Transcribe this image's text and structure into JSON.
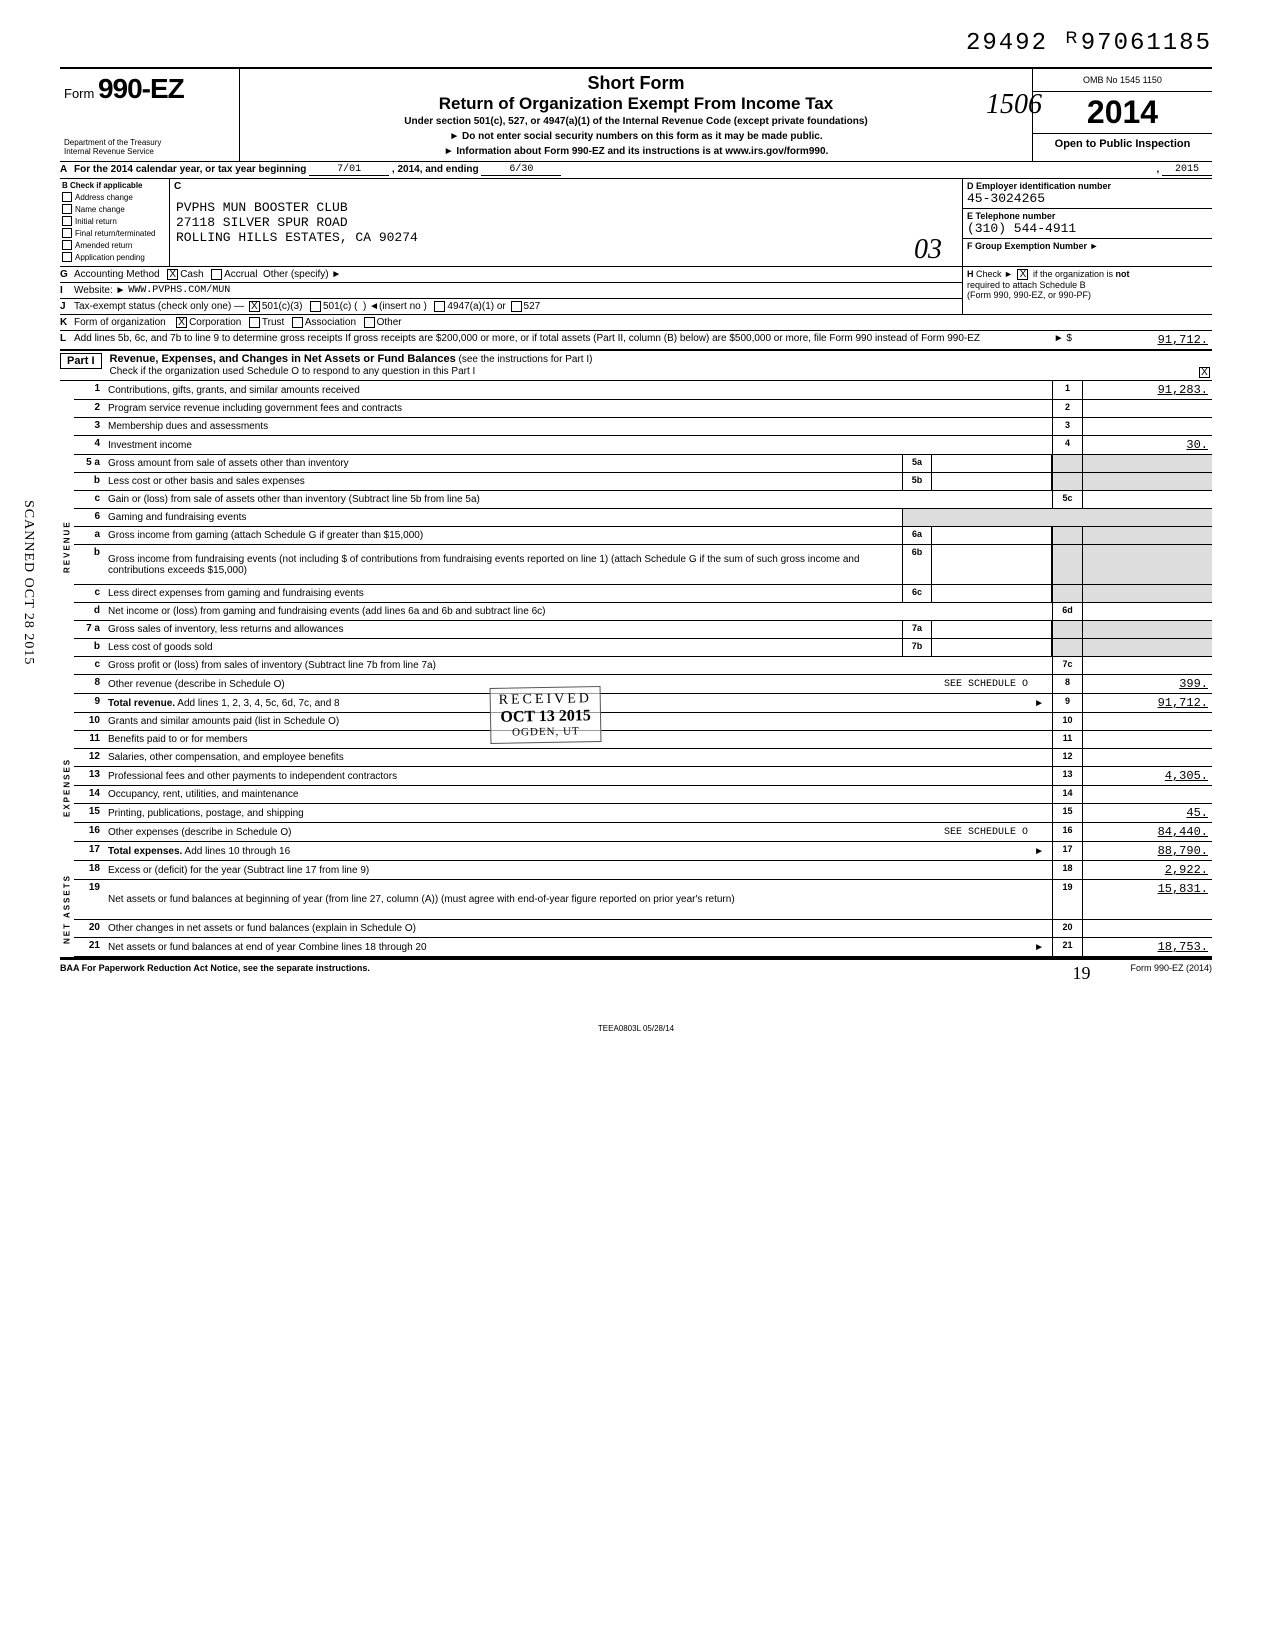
{
  "stamp_number": "29492 ᴿ97061185",
  "form": {
    "prefix": "Form",
    "number": "990-EZ",
    "dept1": "Department of the Treasury",
    "dept2": "Internal Revenue Service"
  },
  "header": {
    "title1": "Short Form",
    "title2": "Return of Organization Exempt From Income Tax",
    "sub": "Under section 501(c), 527, or 4947(a)(1) of the Internal Revenue Code (except private foundations)",
    "note": "► Do not enter social security numbers on this form as it may be made public.",
    "info": "► Information about Form 990-EZ and its instructions is at www.irs.gov/form990.",
    "scribble": "1506"
  },
  "right": {
    "omb": "OMB No 1545 1150",
    "year": "2014",
    "open": "Open to Public Inspection"
  },
  "rowA": {
    "text_pre": "For the 2014 calendar year, or tax year beginning",
    "begin": "7/01",
    "mid": ", 2014, and ending",
    "end": "6/30",
    "year": "2015"
  },
  "colB": {
    "header": "Check if applicable",
    "items": [
      "Address change",
      "Name change",
      "Initial return",
      "Final return/terminated",
      "Amended return",
      "Application pending"
    ]
  },
  "colC": {
    "label": "C",
    "name": "PVPHS MUN BOOSTER CLUB",
    "addr1": "27118 SILVER SPUR ROAD",
    "addr2": "ROLLING HILLS ESTATES, CA 90274",
    "scribble": "03"
  },
  "colDE": {
    "d_label": "D  Employer identification number",
    "d_val": "45-3024265",
    "e_label": "E  Telephone number",
    "e_val": "(310) 544-4911",
    "f_label": "F  Group Exemption Number  ►"
  },
  "rowG": {
    "label": "G",
    "text": "Accounting Method",
    "cash": "Cash",
    "accrual": "Accrual",
    "other": "Other (specify) ►"
  },
  "rowH": {
    "text1": "Check ►",
    "text2": "if the organization is",
    "not": "not",
    "text3": "required to attach Schedule B",
    "text4": "(Form 990, 990-EZ, or 990-PF)"
  },
  "rowI": {
    "label": "I",
    "text": "Website: ►",
    "val": "WWW.PVPHS.COM/MUN"
  },
  "rowJ": {
    "label": "J",
    "text": "Tax-exempt status (check only one) —",
    "o1": "501(c)(3)",
    "o2": "501(c) (",
    "o2b": ")  ◄(insert no )",
    "o3": "4947(a)(1) or",
    "o4": "527"
  },
  "rowK": {
    "label": "K",
    "text": "Form of organization",
    "opts": [
      "Corporation",
      "Trust",
      "Association",
      "Other"
    ]
  },
  "rowL": {
    "label": "L",
    "text": "Add lines 5b, 6c, and 7b to line 9 to determine gross receipts  If gross receipts are $200,000 or more, or if total assets (Part II, column (B) below) are $500,000 or more, file Form 990 instead of Form 990-EZ",
    "arrow": "► $",
    "val": "91,712."
  },
  "part1": {
    "label": "Part I",
    "title": "Revenue, Expenses, and Changes in Net Assets or Fund Balances",
    "title_suffix": " (see the instructions for Part I)",
    "sub": "Check if the organization used Schedule O to respond to any question in this Part I"
  },
  "stamps": {
    "received": "RECEIVED",
    "date": "OCT 13 2015",
    "ogden": "OGDEN, UT",
    "sched_o_ref": "SEE SCHEDULE O"
  },
  "lines": [
    {
      "n": "1",
      "d": "Contributions, gifts, grants, and similar amounts received",
      "r": "1",
      "v": "91,283."
    },
    {
      "n": "2",
      "d": "Program service revenue including government fees and contracts",
      "r": "2",
      "v": ""
    },
    {
      "n": "3",
      "d": "Membership dues and assessments",
      "r": "3",
      "v": ""
    },
    {
      "n": "4",
      "d": "Investment income",
      "r": "4",
      "v": "30."
    },
    {
      "n": "5 a",
      "d": "Gross amount from sale of assets other than inventory",
      "m": "5a",
      "mv": "",
      "shade": true
    },
    {
      "n": "b",
      "d": "Less  cost or other basis and sales expenses",
      "m": "5b",
      "mv": "",
      "shade": true
    },
    {
      "n": "c",
      "d": "Gain or (loss) from sale of assets other than inventory (Subtract line 5b from line 5a)",
      "r": "5c",
      "v": ""
    },
    {
      "n": "6",
      "d": "Gaming and fundraising events",
      "shade_full": true
    },
    {
      "n": "a",
      "d": "Gross income from gaming (attach Schedule G if greater than $15,000)",
      "m": "6a",
      "mv": "",
      "shade": true
    },
    {
      "n": "b",
      "d": "Gross income from fundraising events (not including $                                of contributions from fundraising events reported on line 1) (attach Schedule G if the sum of such gross income and contributions exceeds $15,000)",
      "m": "6b",
      "mv": "",
      "shade": true,
      "tall": true
    },
    {
      "n": "c",
      "d": "Less  direct expenses from gaming and fundraising events",
      "m": "6c",
      "mv": "",
      "shade": true
    },
    {
      "n": "d",
      "d": "Net income or (loss) from gaming and fundraising events (add lines 6a and 6b and subtract line 6c)",
      "r": "6d",
      "v": ""
    },
    {
      "n": "7 a",
      "d": "Gross sales of inventory, less returns and allowances",
      "m": "7a",
      "mv": "",
      "shade": true
    },
    {
      "n": "b",
      "d": "Less  cost of goods sold",
      "m": "7b",
      "mv": "",
      "shade": true
    },
    {
      "n": "c",
      "d": "Gross profit or (loss) from sales of inventory (Subtract line 7b from line 7a)",
      "r": "7c",
      "v": ""
    },
    {
      "n": "8",
      "d": "Other revenue (describe in Schedule O)",
      "r": "8",
      "v": "399.",
      "note": "SEE SCHEDULE O"
    },
    {
      "n": "9",
      "d": "Total revenue. Add lines 1, 2, 3, 4, 5c, 6d, 7c, and 8",
      "r": "9",
      "v": "91,712.",
      "bold": true,
      "arrow": true
    }
  ],
  "exp_lines": [
    {
      "n": "10",
      "d": "Grants and similar amounts paid (list in Schedule O)",
      "r": "10",
      "v": ""
    },
    {
      "n": "11",
      "d": "Benefits paid to or for members",
      "r": "11",
      "v": ""
    },
    {
      "n": "12",
      "d": "Salaries, other compensation, and employee benefits",
      "r": "12",
      "v": ""
    },
    {
      "n": "13",
      "d": "Professional fees and other payments to independent contractors",
      "r": "13",
      "v": "4,305."
    },
    {
      "n": "14",
      "d": "Occupancy, rent, utilities, and maintenance",
      "r": "14",
      "v": ""
    },
    {
      "n": "15",
      "d": "Printing, publications, postage, and shipping",
      "r": "15",
      "v": "45."
    },
    {
      "n": "16",
      "d": "Other expenses (describe in Schedule O)",
      "r": "16",
      "v": "84,440.",
      "note": "SEE SCHEDULE O"
    },
    {
      "n": "17",
      "d": "Total expenses. Add lines 10 through 16",
      "r": "17",
      "v": "88,790.",
      "bold": true,
      "arrow": true
    }
  ],
  "net_lines": [
    {
      "n": "18",
      "d": "Excess or (deficit) for the year (Subtract line 17 from line 9)",
      "r": "18",
      "v": "2,922."
    },
    {
      "n": "19",
      "d": "Net assets or fund balances at beginning of year (from line 27, column (A)) (must agree with end-of-year figure reported on prior year's return)",
      "r": "19",
      "v": "15,831.",
      "tall": true
    },
    {
      "n": "20",
      "d": "Other changes in net assets or fund balances (explain in Schedule O)",
      "r": "20",
      "v": ""
    },
    {
      "n": "21",
      "d": "Net assets or fund balances at end of year  Combine lines 18 through 20",
      "r": "21",
      "v": "18,753.",
      "arrow": true
    }
  ],
  "side_labels": {
    "rev": "REVENUE",
    "exp": "EXPENSES",
    "net": "NET ASSETS"
  },
  "footer": {
    "baa": "BAA For Paperwork Reduction Act Notice, see the separate instructions.",
    "form": "Form 990-EZ (2014)",
    "code": "TEEA0803L  05/28/14",
    "scribble": "19"
  },
  "scan_side": "SCANNED OCT 28 2015"
}
